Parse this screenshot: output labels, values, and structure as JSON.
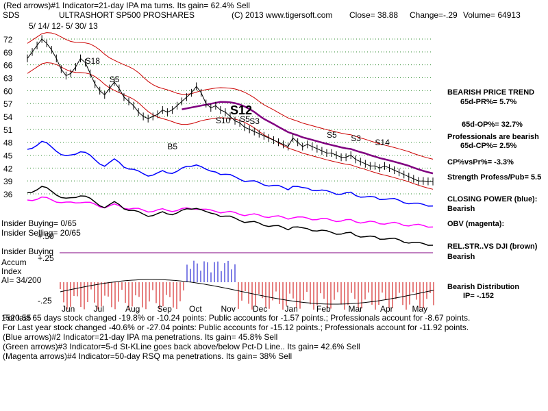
{
  "header": {
    "line1": "(Red arrows)#1 Indicator=21-day IPA ma turns. Its gain= 62.4% Sell",
    "symbol": "SDS",
    "name": "ULTRASHORT SP500 PROSHARES",
    "copyright": "(C) 2013 www.tigersoft.com",
    "close": "Close= 38.88",
    "change": "Change=-.29",
    "volume": "Volume= 64913",
    "date_range": "5/ 14/ 12- 5/ 30/ 13"
  },
  "chart_data": {
    "type": "line",
    "title": "ULTRASHORT SP500 PROSHARES",
    "price_axis": {
      "ticks": [
        72,
        69,
        66,
        63,
        60,
        57,
        54,
        51,
        48,
        45,
        42,
        39,
        36
      ],
      "ylim": [
        34.5,
        73.5
      ]
    },
    "months": [
      "Jun",
      "Jul",
      "Aug",
      "Sep",
      "Oct",
      "Nov",
      "Dec",
      "Jan",
      "Feb",
      "Mar",
      "Apr",
      "May"
    ],
    "price": {
      "x": [
        0,
        3,
        6,
        9,
        12,
        15,
        18,
        21,
        24,
        27,
        30,
        33,
        36,
        39,
        42,
        45,
        48,
        51,
        54,
        57,
        60,
        63,
        66,
        69,
        72,
        75,
        78,
        81,
        84,
        87,
        90,
        93,
        96,
        99,
        102,
        105,
        108,
        111,
        114,
        117,
        120,
        123,
        126,
        129,
        132,
        135,
        138,
        141,
        144,
        147,
        150,
        153,
        156,
        159,
        162,
        165,
        168,
        171,
        174,
        177,
        180,
        183,
        186,
        189,
        192,
        195,
        198,
        201,
        204,
        207,
        210,
        213,
        216,
        219,
        222,
        225,
        228,
        231,
        234,
        237,
        240,
        243,
        246,
        249,
        252
      ],
      "close": [
        67.5,
        69,
        70.5,
        72,
        71,
        69.5,
        67.5,
        65,
        63.5,
        64,
        65.5,
        67.5,
        66.5,
        64,
        61.5,
        60,
        59,
        60.5,
        62,
        60.5,
        58.5,
        57.5,
        56.5,
        55,
        54,
        53.5,
        54,
        54.5,
        55.5,
        55,
        55.5,
        56.5,
        57.5,
        58.5,
        59.5,
        61,
        59.5,
        57,
        56,
        56.5,
        55.5,
        55,
        54,
        53,
        52.5,
        51.5,
        51,
        50.5,
        50,
        49.5,
        49,
        48.5,
        48,
        47.5,
        47,
        49,
        48,
        47,
        47.5,
        47,
        46.5,
        46,
        45.5,
        45.5,
        45,
        44.5,
        44.5,
        45,
        44,
        43.5,
        43,
        42.5,
        42.5,
        42,
        42.5,
        42,
        41.5,
        41,
        40.5,
        40,
        39.5,
        39,
        39,
        38.9,
        38.88
      ]
    },
    "series": [
      {
        "name": "65-day moving average",
        "color": "#800080"
      },
      {
        "name": "Upper band",
        "color": "#cc0000"
      },
      {
        "name": "Lower band",
        "color": "#cc0000"
      },
      {
        "name": "Closing Power",
        "color": "#0000ff"
      },
      {
        "name": "OBV",
        "color": "#ff00ff"
      },
      {
        "name": "Relative strength vs DJI",
        "color": "#000000"
      },
      {
        "name": "Accum Index",
        "color": "#cc0000"
      }
    ],
    "signals": [
      {
        "label": "S18",
        "x": 36
      },
      {
        "label": "S5",
        "x": 51
      },
      {
        "label": "B5",
        "x": 87
      },
      {
        "label": "S12",
        "x": 126
      },
      {
        "label": "S10",
        "x": 117
      },
      {
        "label": "S5",
        "x": 132
      },
      {
        "label": "S3",
        "x": 138
      },
      {
        "label": "S5",
        "x": 186
      },
      {
        "label": "S3",
        "x": 201
      },
      {
        "label": "S14",
        "x": 216
      }
    ],
    "accum_axis": {
      "ticks": [
        "+.50",
        "+.25",
        "-.25"
      ]
    }
  },
  "right_panel": {
    "trend_title": "BEARISH PRICE TREND",
    "pr": "65d-PR%= 5.7%",
    "op": "65d-OP%= 32.7%",
    "prof_bearish": "Professionals are bearish",
    "cp": "65d-CP%= 2.5%",
    "cpvspr": "CP%vsPr%= -3.3%",
    "strength": "Strength Profess/Pub= 5.5",
    "closing_power": "CLOSING POWER (blue):",
    "cp_status": "Bearish",
    "obv": "OBV (magenta):",
    "relstr": "REL.STR..VS DJI (brown)",
    "relstr_status": "Bearish",
    "distribution": "Bearish Distribution",
    "ip": "IP= -.152"
  },
  "left_panel": {
    "insider_buying": "Insider Buying= 0/65",
    "insider_selling": "Insider Selling= 20/65",
    "insider_buying_label": "Insider Buying",
    "accum": "Accum",
    "index": "Index",
    "ai": "AI= 34/200"
  },
  "footer": {
    "line1": "For last 65 days stock changed -19.8% or -10.24 points: Public accounts for -1.57 points.; Professionals account for -8.67 points.",
    "overstrike": "1520.55",
    "line2": "For Last year stock changed -40.6% or -27.04 points: Public accounts for -15.12 points.; Professionals account for -11.92 points.",
    "line3": "(Blue arrows)#2 Indicator=21-day IPA ma penetrations. Its gain= 45.8% Sell",
    "line4": "(Green arrows)#3 Indicator=5-d St-KLine goes back above/below Pct-D Line.. Its gain= 42.6% Sell",
    "line5": "(Magenta arrows)#4 Indicator=50-day RSQ ma penetrations. Its gain= 38% Sell"
  }
}
